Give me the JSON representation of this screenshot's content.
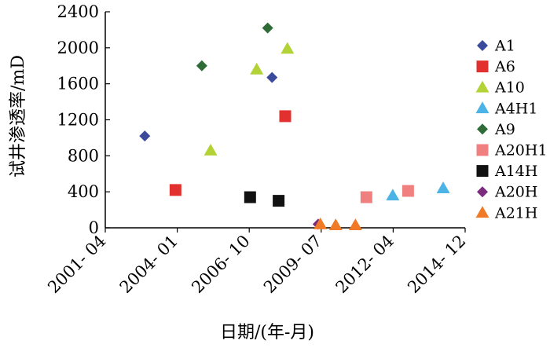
{
  "chart_data": {
    "type": "scatter",
    "title": "",
    "xlabel": "日期/(年-月)",
    "ylabel": "试井渗透率/mD",
    "ylim": [
      0,
      2400
    ],
    "yticks": [
      0,
      400,
      800,
      1200,
      1600,
      2000,
      2400
    ],
    "xlim": [
      "2001-04",
      "2014-12"
    ],
    "xtick_labels": [
      "2001- 04",
      "2004- 01",
      "2006- 10",
      "2009- 07",
      "2012- 04",
      "2014- 12"
    ],
    "grid": false,
    "legend_position": "right",
    "series": [
      {
        "name": "A1",
        "marker": "diamond",
        "color": "#3c4a9b",
        "points": [
          [
            "2002-10",
            1020
          ],
          [
            "2007-08",
            1670
          ]
        ]
      },
      {
        "name": "A6",
        "marker": "square",
        "color": "#e2302e",
        "points": [
          [
            "2003-12",
            420
          ],
          [
            "2008-02",
            1240
          ]
        ]
      },
      {
        "name": "A10",
        "marker": "triangle",
        "color": "#b2d235",
        "points": [
          [
            "2005-04",
            860
          ],
          [
            "2007-01",
            1760
          ],
          [
            "2008-03",
            1990
          ]
        ]
      },
      {
        "name": "A4H1",
        "marker": "triangle",
        "color": "#4bb3e6",
        "points": [
          [
            "2012-03",
            360
          ],
          [
            "2014-02",
            440
          ]
        ]
      },
      {
        "name": "A9",
        "marker": "diamond",
        "color": "#2f6b36",
        "points": [
          [
            "2004-12",
            1800
          ],
          [
            "2007-06",
            2220
          ]
        ]
      },
      {
        "name": "A20H1",
        "marker": "square",
        "color": "#f08080",
        "points": [
          [
            "2011-03",
            340
          ],
          [
            "2012-10",
            410
          ]
        ]
      },
      {
        "name": "A14H",
        "marker": "square",
        "color": "#111111",
        "points": [
          [
            "2006-10",
            340
          ],
          [
            "2007-11",
            300
          ]
        ]
      },
      {
        "name": "A20H",
        "marker": "diamond",
        "color": "#7b2a7e",
        "points": [
          [
            "2009-05",
            40
          ]
        ]
      },
      {
        "name": "A21H",
        "marker": "triangle",
        "color": "#f07a26",
        "points": [
          [
            "2009-06",
            40
          ],
          [
            "2010-01",
            30
          ],
          [
            "2010-10",
            30
          ]
        ]
      }
    ]
  }
}
